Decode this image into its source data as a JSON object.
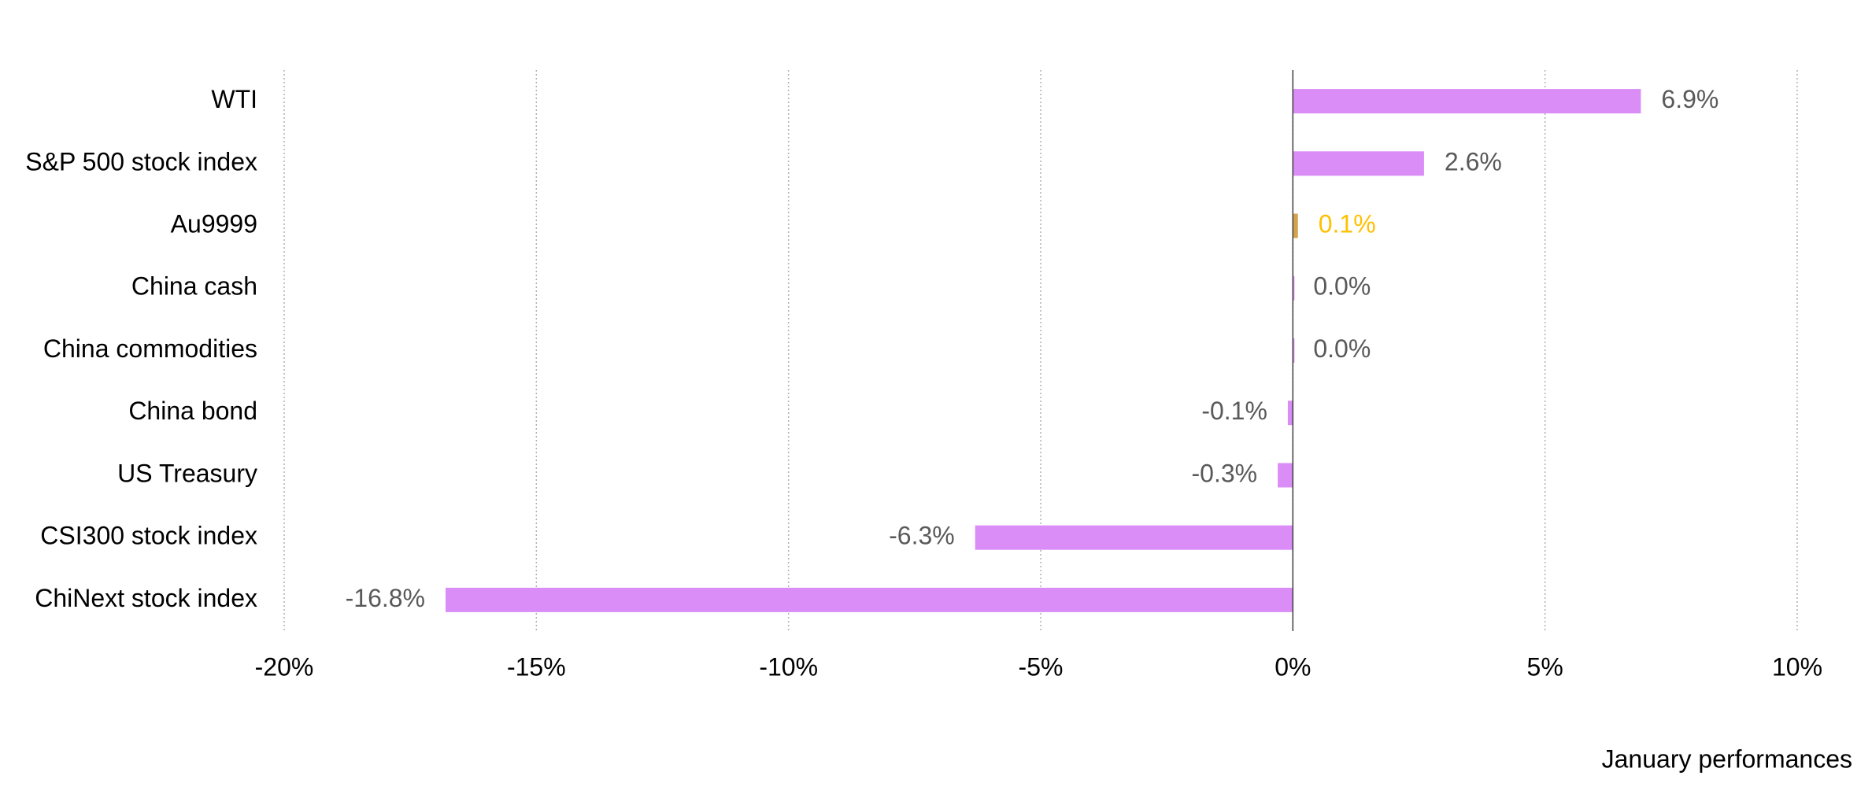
{
  "chart_data": {
    "type": "bar",
    "orientation": "horizontal",
    "axis_title": "January performances",
    "categories": [
      "WTI",
      "S&P 500 stock index",
      "Au9999",
      "China cash",
      "China commodities",
      "China bond",
      "US Treasury",
      "CSI300 stock index",
      "ChiNext stock index"
    ],
    "values": [
      6.9,
      2.6,
      0.1,
      0.0,
      0.0,
      -0.1,
      -0.3,
      -6.3,
      -16.8
    ],
    "value_labels": [
      "6.9%",
      "2.6%",
      "0.1%",
      "0.0%",
      "0.0%",
      "-0.1%",
      "-0.3%",
      "-6.3%",
      "-16.8%"
    ],
    "colors": [
      "#da8cf7",
      "#da8cf7",
      "#d4a34c",
      "#da8cf7",
      "#da8cf7",
      "#da8cf7",
      "#da8cf7",
      "#da8cf7",
      "#da8cf7"
    ],
    "label_colors": [
      "#595959",
      "#595959",
      "#ffc000",
      "#595959",
      "#595959",
      "#595959",
      "#595959",
      "#595959",
      "#595959"
    ],
    "xlim": [
      -20,
      10
    ],
    "xticks": [
      {
        "value": -20,
        "label": "-20%"
      },
      {
        "value": -15,
        "label": "-15%"
      },
      {
        "value": -10,
        "label": "-10%"
      },
      {
        "value": -5,
        "label": "-5%"
      },
      {
        "value": 0,
        "label": "0%"
      },
      {
        "value": 5,
        "label": "5%"
      },
      {
        "value": 10,
        "label": "10%"
      }
    ],
    "grid": true
  }
}
